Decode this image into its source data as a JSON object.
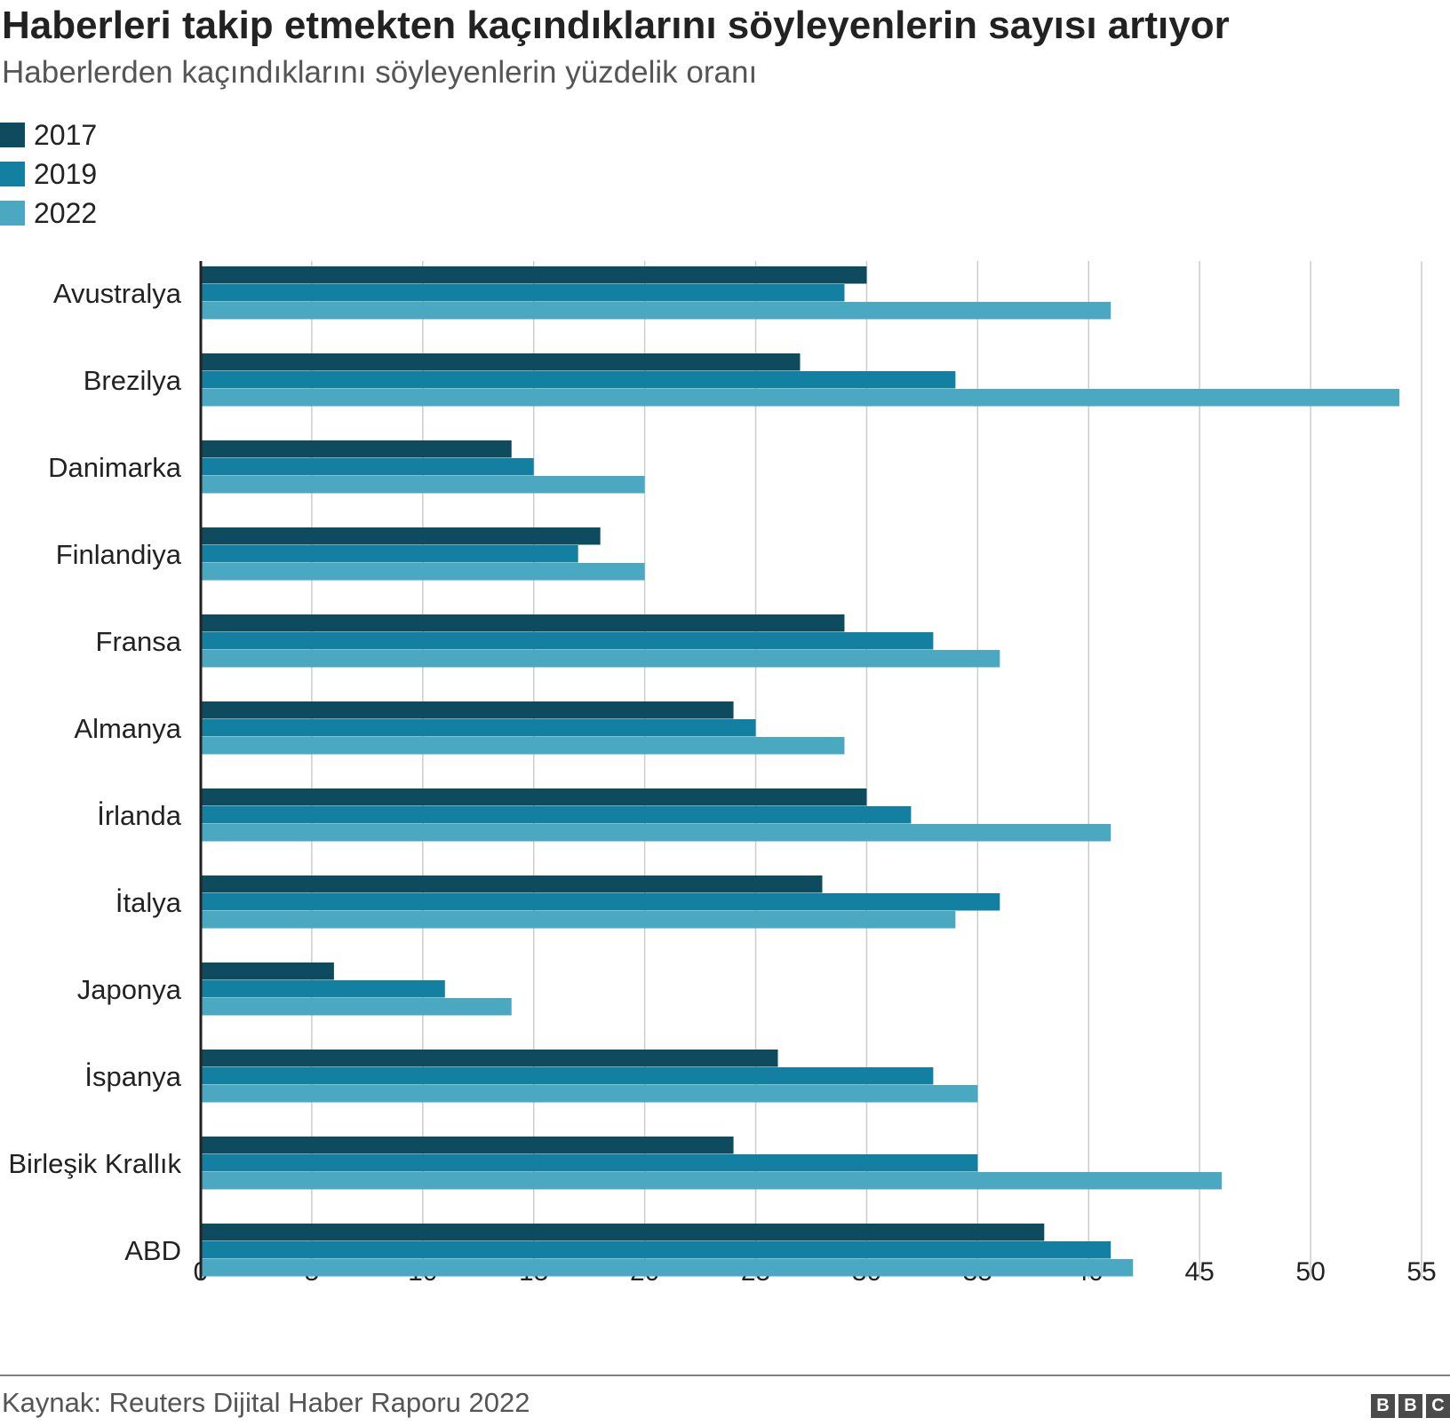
{
  "chart_data": {
    "type": "bar",
    "orientation": "horizontal",
    "title": "Haberleri takip etmekten kaçındıklarını söyleyenlerin sayısı artıyor",
    "subtitle": "Haberlerden kaçındıklarını söyleyenlerin yüzdelik oranı",
    "categories": [
      "Avustralya",
      "Brezilya",
      "Danimarka",
      "Finlandiya",
      "Fransa",
      "Almanya",
      "İrlanda",
      "İtalya",
      "Japonya",
      "İspanya",
      "Birleşik Krallık",
      "ABD"
    ],
    "series": [
      {
        "name": "2017",
        "color": "#0f4b5f",
        "values": [
          30,
          27,
          14,
          18,
          29,
          24,
          30,
          28,
          6,
          26,
          24,
          38
        ]
      },
      {
        "name": "2019",
        "color": "#1380a1",
        "values": [
          29,
          34,
          15,
          17,
          33,
          25,
          32,
          36,
          11,
          33,
          35,
          41
        ]
      },
      {
        "name": "2022",
        "color": "#4aa8c0",
        "values": [
          41,
          54,
          20,
          20,
          36,
          29,
          41,
          34,
          14,
          35,
          46,
          42
        ]
      }
    ],
    "xlim": [
      0,
      55
    ],
    "xticks": [
      0,
      5,
      10,
      15,
      20,
      25,
      30,
      35,
      40,
      45,
      50,
      55
    ],
    "grid": true,
    "legend": "top-left"
  },
  "source": "Kaynak: Reuters Dijital Haber Raporu 2022",
  "logo": [
    "B",
    "B",
    "C"
  ]
}
